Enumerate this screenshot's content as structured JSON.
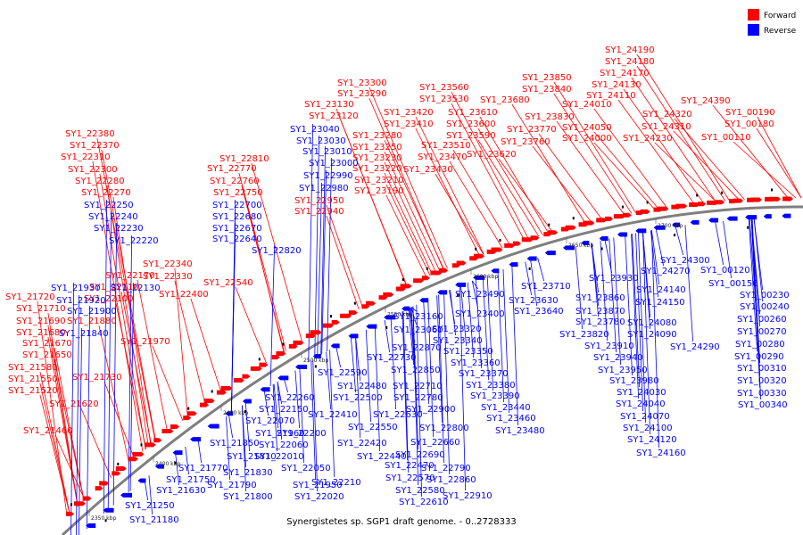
{
  "title": "Synergistetes sp. SGP1 draft genome. - 0..2728333",
  "legend": [
    {
      "label": "Forward",
      "color": "#ff0000"
    },
    {
      "label": "Reverse",
      "color": "#0000ff"
    }
  ],
  "colors": {
    "forward": "#ff0000",
    "reverse": "#0000ff",
    "backbone": "#7f7f7f"
  },
  "kbp_ticks": [
    "2350 kbp",
    "2400 kbp",
    "2450 kbp",
    "2500 kbp",
    "2550 kbp",
    "2600 kbp",
    "2650 kbp",
    "2700 kbp"
  ],
  "forward_labels": [
    "SY1_21460",
    "SY1_21620",
    "SY1_21520",
    "SY1_21550",
    "SY1_21580",
    "SY1_21650",
    "SY1_21670",
    "SY1_21680",
    "SY1_21690",
    "SY1_21710",
    "SY1_21720",
    "SY1_21730",
    "SY1_21970",
    "SY1_21880",
    "SY1_22100",
    "SY1_22110",
    "SY1_22170",
    "SY1_22270",
    "SY1_22280",
    "SY1_22300",
    "SY1_22310",
    "SY1_22370",
    "SY1_22380",
    "SY1_22340",
    "SY1_22330",
    "SY1_22400",
    "SY1_22540",
    "SY1_22810",
    "SY1_22770",
    "SY1_22760",
    "SY1_22750",
    "SY1_22950",
    "SY1_22940",
    "SY1_23130",
    "SY1_23120",
    "SY1_23300",
    "SY1_23290",
    "SY1_23280",
    "SY1_23250",
    "SY1_23230",
    "SY1_23220",
    "SY1_23210",
    "SY1_23190",
    "SY1_23420",
    "SY1_23410",
    "SY1_23560",
    "SY1_23530",
    "SY1_23510",
    "SY1_23470",
    "SY1_23430",
    "SY1_23610",
    "SY1_23600",
    "SY1_23590",
    "SY1_23620",
    "SY1_23680",
    "SY1_23770",
    "SY1_23760",
    "SY1_23830",
    "SY1_23850",
    "SY1_23840",
    "SY1_24010",
    "SY1_24050",
    "SY1_24000",
    "SY1_24190",
    "SY1_24180",
    "SY1_24170",
    "SY1_24130",
    "SY1_24110",
    "SY1_24320",
    "SY1_24310",
    "SY1_24230",
    "SY1_24390",
    "SY1_00190",
    "SY1_00180",
    "SY1_00110"
  ],
  "reverse_labels": [
    "SY1_21180",
    "SY1_21250",
    "SY1_21630",
    "SY1_21750",
    "SY1_21770",
    "SY1_21790",
    "SY1_21800",
    "SY1_21810",
    "SY1_21830",
    "SY1_21850",
    "SY1_21950",
    "SY1_21960",
    "SY1_22020",
    "SY1_22050",
    "SY1_22010",
    "SY1_22060",
    "SY1_22070",
    "SY1_22150",
    "SY1_22260",
    "SY1_22200",
    "SY1_22210",
    "SY1_22410",
    "SY1_22420",
    "SY1_22440",
    "SY1_22470",
    "SY1_22480",
    "SY1_22500",
    "SY1_22550",
    "SY1_22570",
    "SY1_22580",
    "SY1_22590",
    "SY1_22610",
    "SY1_22630",
    "SY1_22660",
    "SY1_22690",
    "SY1_22710",
    "SY1_22730",
    "SY1_22780",
    "SY1_22790",
    "SY1_22800",
    "SY1_22850",
    "SY1_22860",
    "SY1_22870",
    "SY1_22900",
    "SY1_22910",
    "SY1_21930",
    "SY1_21920",
    "SY1_21900",
    "SY1_21840",
    "SY1_22130",
    "SY1_22250",
    "SY1_22240",
    "SY1_22230",
    "SY1_22220",
    "SY1_22700",
    "SY1_22680",
    "SY1_22670",
    "SY1_22640",
    "SY1_22820",
    "SY1_23040",
    "SY1_23030",
    "SY1_23010",
    "SY1_23000",
    "SY1_22990",
    "SY1_22980",
    "SY1_23160",
    "SY1_23060",
    "SY1_23490",
    "SY1_23400",
    "SY1_23320",
    "SY1_23340",
    "SY1_23350",
    "SY1_23360",
    "SY1_23370",
    "SY1_23380",
    "SY1_23390",
    "SY1_23440",
    "SY1_23460",
    "SY1_23480",
    "SY1_23710",
    "SY1_23630",
    "SY1_23640",
    "SY1_23930",
    "SY1_23860",
    "SY1_23870",
    "SY1_23780",
    "SY1_23820",
    "SY1_23910",
    "SY1_23940",
    "SY1_23950",
    "SY1_23980",
    "SY1_24030",
    "SY1_24040",
    "SY1_24070",
    "SY1_24100",
    "SY1_24120",
    "SY1_24160",
    "SY1_24140",
    "SY1_24150",
    "SY1_24080",
    "SY1_24090",
    "SY1_24300",
    "SY1_24270",
    "SY1_24290",
    "SY1_00120",
    "SY1_00150",
    "SY1_00230",
    "SY1_00240",
    "SY1_00260",
    "SY1_00270",
    "SY1_00280",
    "SY1_00290",
    "SY1_00310",
    "SY1_00320",
    "SY1_00330",
    "SY1_00340"
  ]
}
